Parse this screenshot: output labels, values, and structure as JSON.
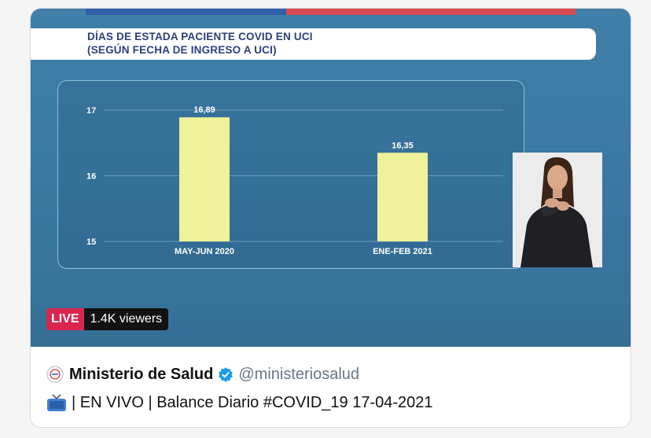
{
  "chart": {
    "title_line1": "DÍAS DE ESTADA PACIENTE COVID EN UCI",
    "title_line2": "(SEGÚN FECHA DE INGRESO A UCI)"
  },
  "chart_data": {
    "type": "bar",
    "categories": [
      "MAY-JUN 2020",
      "ENE-FEB 2021"
    ],
    "values": [
      16.89,
      16.35
    ],
    "value_labels": [
      "16,89",
      "16,35"
    ],
    "yticks": [
      "15",
      "16",
      "17"
    ],
    "ylim": [
      15,
      17
    ],
    "bar_color": "#f0f29a",
    "grid": true
  },
  "stream": {
    "live_label": "LIVE",
    "viewers": "1.4K viewers",
    "live_color": "#d9264f"
  },
  "account": {
    "name": "Ministerio de Salud",
    "handle": "@ministeriosalud",
    "logo_icon": "ministry-logo-icon",
    "verified_icon": "verified-badge-icon"
  },
  "tweet": {
    "icon": "tv-icon",
    "text": "| EN VIVO | Balance Diario #COVID_19 17-04-2021"
  }
}
